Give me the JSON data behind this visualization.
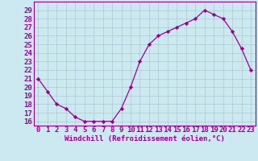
{
  "x": [
    0,
    1,
    2,
    3,
    4,
    5,
    6,
    7,
    8,
    9,
    10,
    11,
    12,
    13,
    14,
    15,
    16,
    17,
    18,
    19,
    20,
    21,
    22,
    23
  ],
  "y": [
    21,
    19.5,
    18,
    17.5,
    16.5,
    16,
    16,
    16,
    16,
    17.5,
    20,
    23,
    25,
    26,
    26.5,
    27,
    27.5,
    28,
    29,
    28.5,
    28,
    26.5,
    24.5,
    22
  ],
  "line_color": "#990099",
  "marker": "D",
  "marker_size": 2.2,
  "bg_color": "#cce8f0",
  "grid_color": "#aacccc",
  "xlabel": "Windchill (Refroidissement éolien,°C)",
  "xlabel_color": "#990099",
  "ylabel_ticks": [
    16,
    17,
    18,
    19,
    20,
    21,
    22,
    23,
    24,
    25,
    26,
    27,
    28,
    29
  ],
  "xlim": [
    -0.5,
    23.5
  ],
  "ylim": [
    15.5,
    30.0
  ],
  "tick_fontsize": 6.5,
  "xlabel_fontsize": 6.5
}
